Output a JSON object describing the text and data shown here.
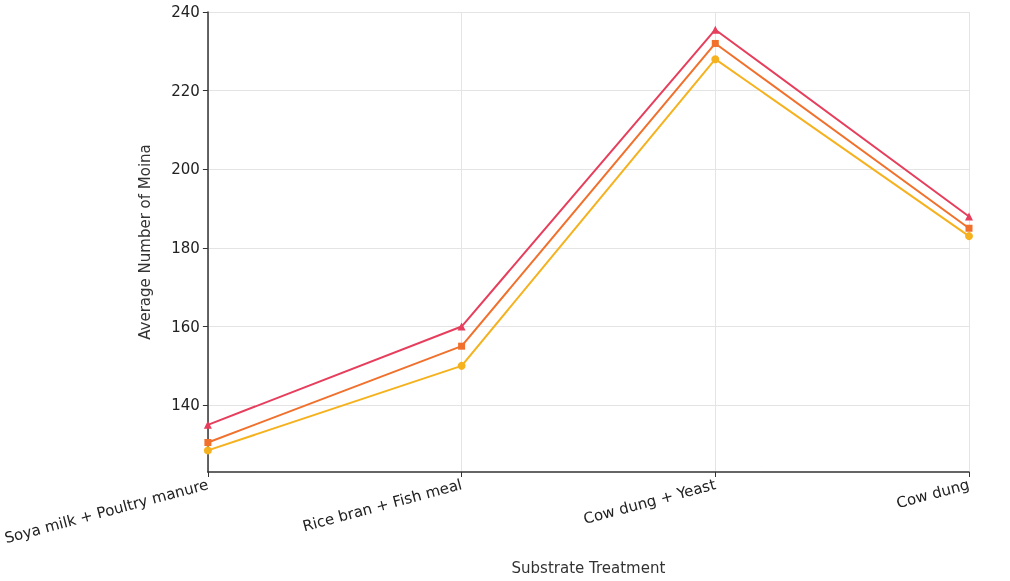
{
  "chart_data": {
    "type": "line",
    "xlabel": "Substrate Treatment",
    "ylabel": "Average Number of Moina",
    "categories": [
      "Soya milk + Poultry manure",
      "Rice bran + Fish meal",
      "Cow dung + Yeast",
      "Cow dung"
    ],
    "series": [
      {
        "color": "#f5b21e",
        "marker": "circle",
        "values": [
          128.5,
          150,
          228,
          183
        ]
      },
      {
        "color": "#f0702c",
        "marker": "square",
        "values": [
          130.5,
          155,
          232,
          185
        ]
      },
      {
        "color": "#e63e5c",
        "marker": "triangle",
        "values": [
          135,
          160,
          235.5,
          188
        ]
      }
    ],
    "ylim": [
      123,
      240
    ],
    "yticks": [
      140,
      160,
      180,
      200,
      220,
      240
    ],
    "grid": true
  }
}
